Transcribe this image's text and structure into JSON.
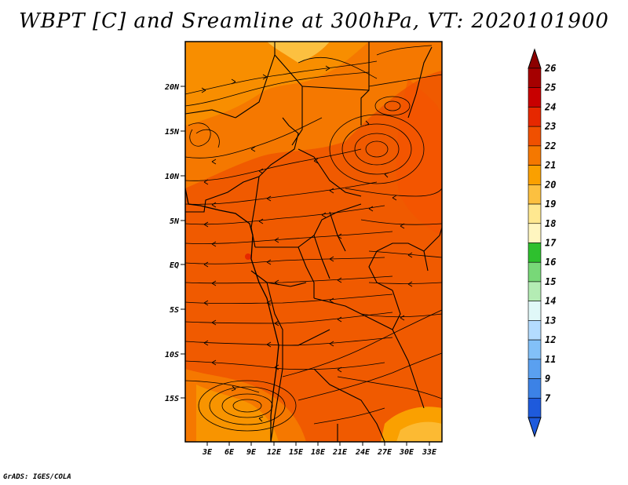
{
  "title": "WBPT [C] and Sreamline at 300hPa, VT: 2020101900",
  "footer": "GrADS: IGES/COLA",
  "map": {
    "lat_labels": [
      "20N",
      "15N",
      "10N",
      "5N",
      "EQ",
      "5S",
      "10S",
      "15S"
    ],
    "lon_labels": [
      "3E",
      "6E",
      "9E",
      "12E",
      "15E",
      "18E",
      "21E",
      "24E",
      "27E",
      "30E",
      "33E"
    ]
  },
  "colorbar": {
    "levels": [
      {
        "label": "26",
        "color": "#a50000"
      },
      {
        "label": "25",
        "color": "#c80000"
      },
      {
        "label": "24",
        "color": "#e62800"
      },
      {
        "label": "23",
        "color": "#f05000"
      },
      {
        "label": "22",
        "color": "#f57800"
      },
      {
        "label": "21",
        "color": "#faa000"
      },
      {
        "label": "20",
        "color": "#fcc040"
      },
      {
        "label": "19",
        "color": "#ffe890"
      },
      {
        "label": "18",
        "color": "#fff6c0"
      },
      {
        "label": "17",
        "color": "#2ec02e"
      },
      {
        "label": "16",
        "color": "#78d878"
      },
      {
        "label": "15",
        "color": "#b4ecb4"
      },
      {
        "label": "14",
        "color": "#e0f8f8"
      },
      {
        "label": "13",
        "color": "#b4dcff"
      },
      {
        "label": "12",
        "color": "#82c0f8"
      },
      {
        "label": "11",
        "color": "#5aa0f0"
      },
      {
        "label": "9",
        "color": "#3c82e6"
      },
      {
        "label": "7",
        "color": "#1e5adc"
      }
    ],
    "top_color": "#8c0000",
    "bottom_color": "#1e5adc"
  }
}
